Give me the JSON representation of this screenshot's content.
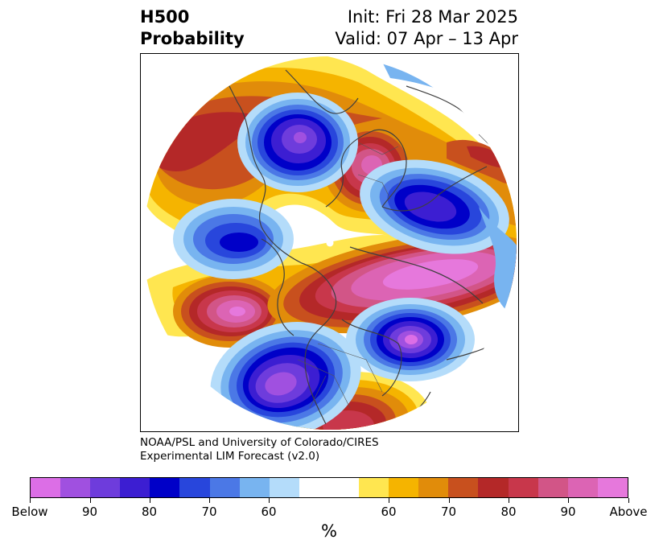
{
  "header": {
    "title_line1": "H500",
    "title_line2": "Probability",
    "init": "Init: Fri 28 Mar 2025",
    "valid": "Valid: 07 Apr – 13 Apr"
  },
  "credit": {
    "line1": "NOAA/PSL and University of Colorado/CIRES",
    "line2": "Experimental LIM Forecast (v2.0)"
  },
  "colorbar": {
    "unit": "%",
    "colors": [
      "#dc6ee6",
      "#a050e0",
      "#6e3cdc",
      "#3c1ed2",
      "#0000c8",
      "#2846dc",
      "#4b78e6",
      "#78b4f0",
      "#b4dcfa",
      "#ffffff",
      "#ffffff",
      "#ffe650",
      "#f5b400",
      "#e18c0a",
      "#c8501e",
      "#b42828",
      "#c8374b",
      "#d25587",
      "#dc64b4",
      "#e678dc"
    ],
    "tick_labels": [
      "Below",
      "90",
      "80",
      "70",
      "60",
      "60",
      "70",
      "80",
      "90",
      "Above"
    ]
  },
  "map": {
    "projection": "north-polar-stereographic",
    "anomalies": [
      {
        "sign": "above",
        "max_category": "90"
      },
      {
        "sign": "above",
        "max_category": "Above"
      },
      {
        "sign": "above",
        "max_category": "Above"
      },
      {
        "sign": "above",
        "max_category": "80"
      },
      {
        "sign": "above",
        "max_category": "90"
      },
      {
        "sign": "above",
        "max_category": "80"
      },
      {
        "sign": "below",
        "max_category": "90"
      },
      {
        "sign": "below",
        "max_category": "80"
      },
      {
        "sign": "below",
        "max_category": "80"
      },
      {
        "sign": "below",
        "max_category": "90"
      },
      {
        "sign": "below",
        "max_category": "90"
      }
    ]
  }
}
